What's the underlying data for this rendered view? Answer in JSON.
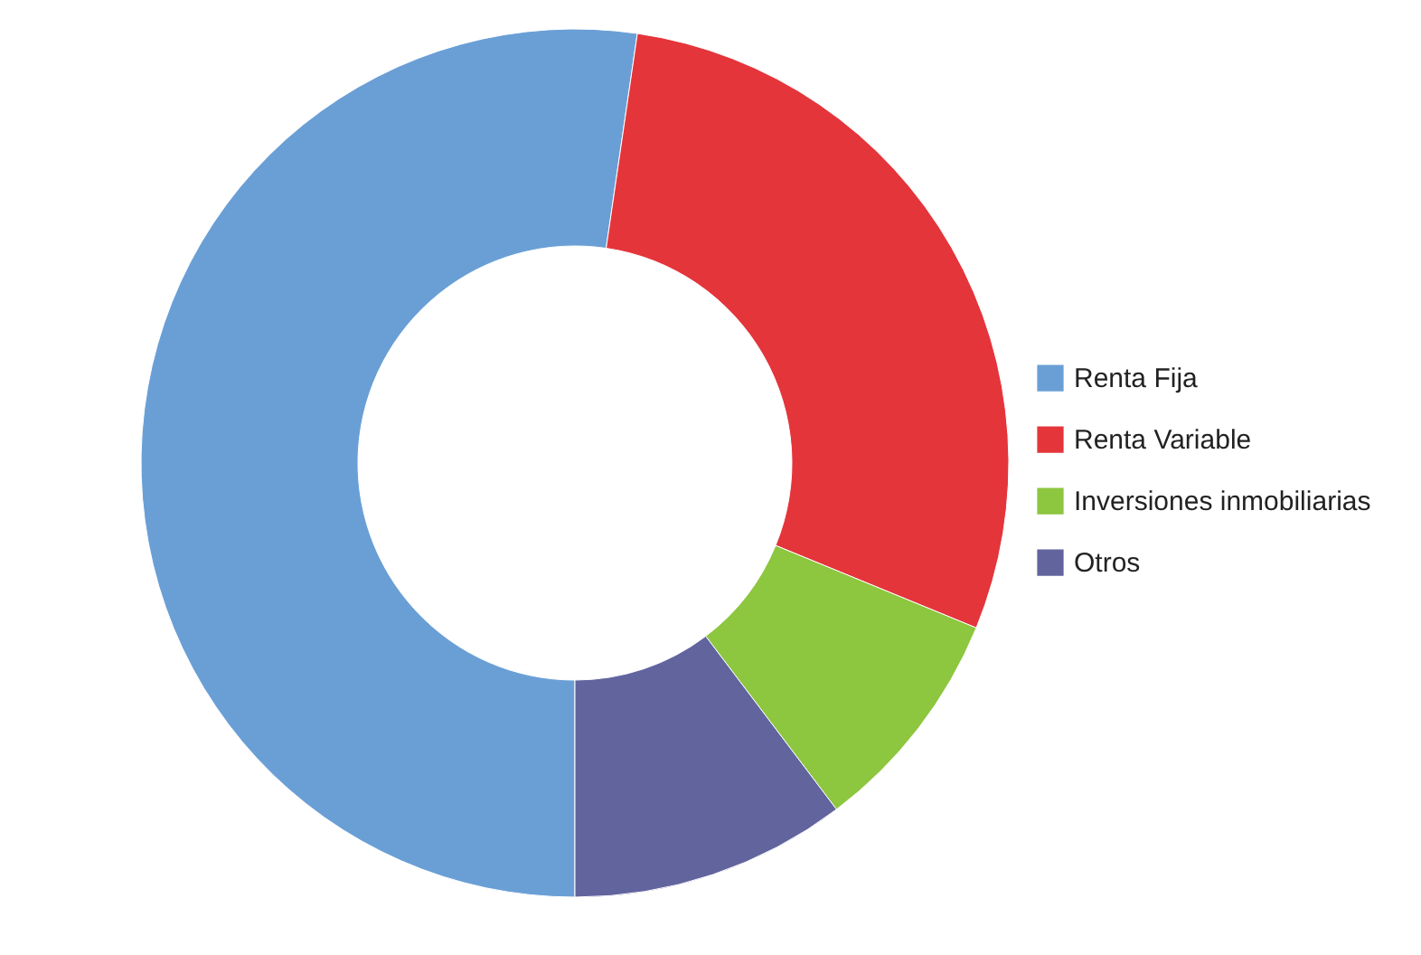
{
  "chart_data": {
    "type": "donut",
    "categories": [
      "Renta Fija",
      "Renta Variable",
      "Inversiones inmobiliarias",
      "Otros"
    ],
    "values": [
      52.3,
      28.9,
      8.5,
      10.3
    ],
    "colors": [
      "#6a9fd6",
      "#e4353b",
      "#8dc63f",
      "#62649e"
    ],
    "legend": "right"
  }
}
